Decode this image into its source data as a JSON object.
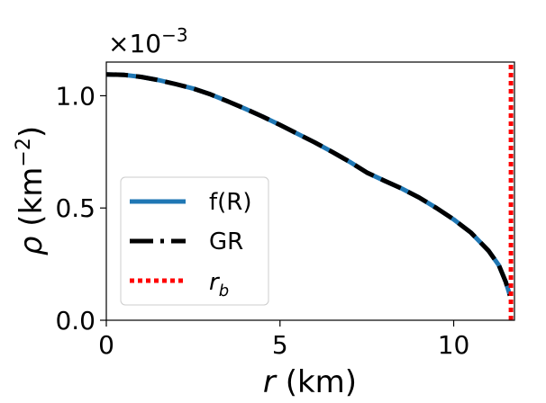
{
  "chart_data": {
    "type": "line",
    "xlabel": "r (km)",
    "ylabel": "ρ (km⁻²)",
    "y_offset_label": "×10",
    "y_offset_exp": "−3",
    "xlim": [
      0,
      11.75
    ],
    "ylim": [
      0,
      1.15
    ],
    "x_ticks": [
      0,
      5,
      10
    ],
    "x_tick_labels": [
      "0",
      "5",
      "10"
    ],
    "y_ticks": [
      0,
      0.5,
      1.0
    ],
    "y_tick_labels": [
      "0.0",
      "0.5",
      "1.0"
    ],
    "grid": false,
    "legend_position": "lower-left",
    "series": [
      {
        "name": "f(R)",
        "style": "solid",
        "color": "#1f77b4",
        "x": [
          0,
          0.5,
          1,
          1.5,
          2,
          2.5,
          3,
          3.5,
          4,
          4.5,
          5,
          5.5,
          6,
          6.5,
          7,
          7.5,
          8,
          8.5,
          9,
          9.5,
          10,
          10.5,
          11,
          11.3,
          11.5,
          11.62
        ],
        "y": [
          1.095,
          1.093,
          1.084,
          1.07,
          1.052,
          1.032,
          1.006,
          0.975,
          0.942,
          0.907,
          0.87,
          0.831,
          0.792,
          0.75,
          0.706,
          0.658,
          0.622,
          0.587,
          0.547,
          0.5,
          0.449,
          0.39,
          0.31,
          0.245,
          0.17,
          0.11
        ]
      },
      {
        "name": "GR",
        "style": "dashed",
        "color": "#000000",
        "x": [
          0,
          0.5,
          1,
          1.5,
          2,
          2.5,
          3,
          3.5,
          4,
          4.5,
          5,
          5.5,
          6,
          6.5,
          7,
          7.5,
          8,
          8.5,
          9,
          9.5,
          10,
          10.5,
          11,
          11.3,
          11.5,
          11.62
        ],
        "y": [
          1.095,
          1.093,
          1.084,
          1.07,
          1.052,
          1.032,
          1.006,
          0.975,
          0.942,
          0.907,
          0.87,
          0.831,
          0.792,
          0.75,
          0.706,
          0.658,
          0.622,
          0.587,
          0.547,
          0.5,
          0.449,
          0.39,
          0.31,
          0.245,
          0.17,
          0.11
        ]
      },
      {
        "name": "r",
        "name_sub": "b",
        "style": "dotted",
        "color": "#ff0000",
        "x": [
          11.65,
          11.65
        ],
        "y": [
          0,
          1.15
        ]
      }
    ]
  }
}
